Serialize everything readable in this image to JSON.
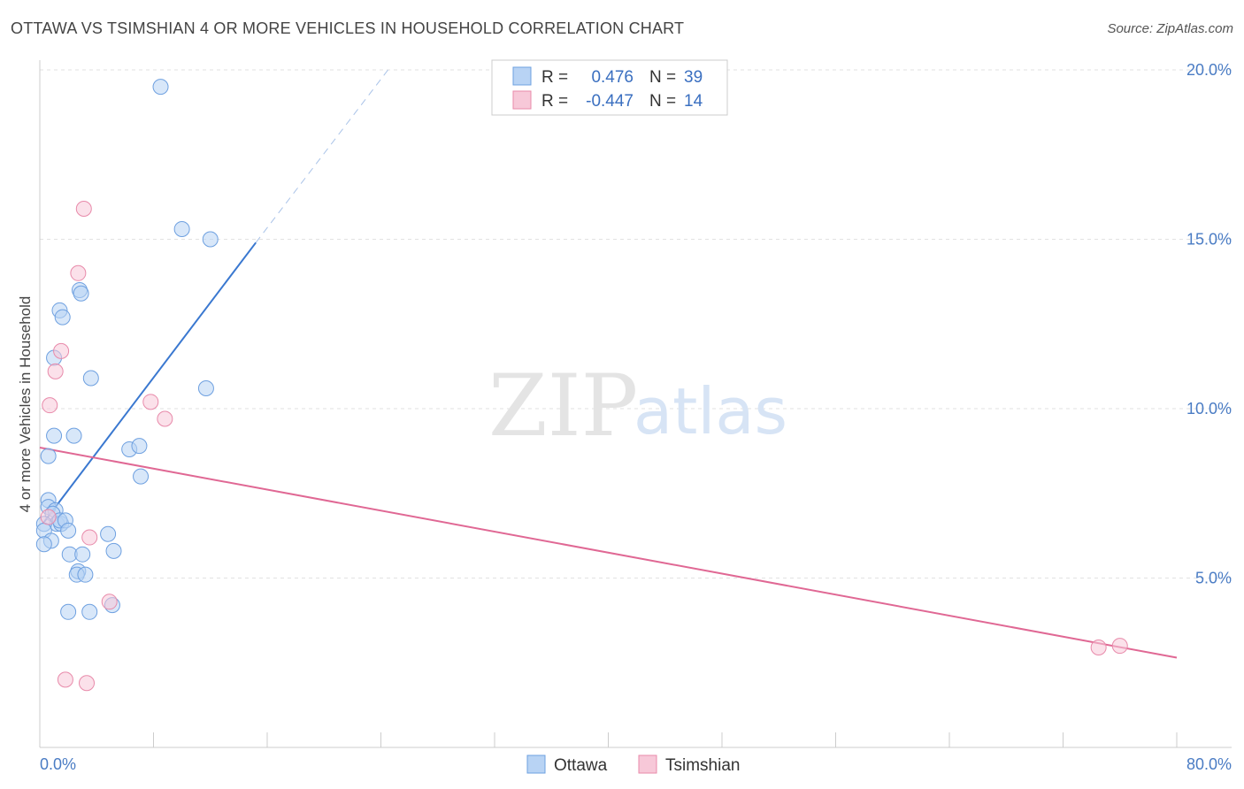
{
  "title": "OTTAWA VS TSIMSHIAN 4 OR MORE VEHICLES IN HOUSEHOLD CORRELATION CHART",
  "source": "Source: ZipAtlas.com",
  "watermark": {
    "zip": "ZIP",
    "atlas": "atlas"
  },
  "legend": {
    "rows": [
      {
        "r_label": "R =",
        "r_value": "0.476",
        "n_label": "N =",
        "n_value": "39"
      },
      {
        "r_label": "R =",
        "r_value": "-0.447",
        "n_label": "N =",
        "n_value": "14"
      }
    ]
  },
  "chart_data": {
    "type": "scatter",
    "title": "",
    "xlabel": "",
    "ylabel": "4 or more Vehicles in Household",
    "xlim": [
      0,
      80
    ],
    "ylim": [
      0,
      20.5
    ],
    "x_tick_labels": [
      {
        "value": 0,
        "label": "0.0%"
      },
      {
        "value": 80,
        "label": "80.0%"
      }
    ],
    "y_tick_labels": [
      {
        "value": 5,
        "label": "5.0%"
      },
      {
        "value": 10,
        "label": "10.0%"
      },
      {
        "value": 15,
        "label": "15.0%"
      },
      {
        "value": 20,
        "label": "20.0%"
      }
    ],
    "grid": true,
    "legend_position": "top-center",
    "series": [
      {
        "name": "Ottawa",
        "color": "#6ea0e0",
        "fill": "#b8d3f4",
        "trend_color": "#3a78d0",
        "trend": {
          "x0": 0.2,
          "y0": 6.6,
          "x1": 15.2,
          "y1": 14.9,
          "dash_to_x": 24.5,
          "dash_to_y": 20.0
        },
        "points": [
          [
            8.5,
            19.5
          ],
          [
            10,
            15.3
          ],
          [
            12,
            15.0
          ],
          [
            2.8,
            13.5
          ],
          [
            2.9,
            13.4
          ],
          [
            1.4,
            12.9
          ],
          [
            1.6,
            12.7
          ],
          [
            1.0,
            11.5
          ],
          [
            3.6,
            10.9
          ],
          [
            11.7,
            10.6
          ],
          [
            1.0,
            9.2
          ],
          [
            2.4,
            9.2
          ],
          [
            6.3,
            8.8
          ],
          [
            7.0,
            8.9
          ],
          [
            0.6,
            8.6
          ],
          [
            7.1,
            8.0
          ],
          [
            0.6,
            7.3
          ],
          [
            0.6,
            7.1
          ],
          [
            1.1,
            7.0
          ],
          [
            0.9,
            6.9
          ],
          [
            1.2,
            6.6
          ],
          [
            1.5,
            6.6
          ],
          [
            1.4,
            6.7
          ],
          [
            1.8,
            6.7
          ],
          [
            0.3,
            6.6
          ],
          [
            0.3,
            6.4
          ],
          [
            2.0,
            6.4
          ],
          [
            4.8,
            6.3
          ],
          [
            0.8,
            6.1
          ],
          [
            0.3,
            6.0
          ],
          [
            2.1,
            5.7
          ],
          [
            3.0,
            5.7
          ],
          [
            5.2,
            5.8
          ],
          [
            2.7,
            5.2
          ],
          [
            2.6,
            5.1
          ],
          [
            3.2,
            5.1
          ],
          [
            2.0,
            4.0
          ],
          [
            3.5,
            4.0
          ],
          [
            5.1,
            4.2
          ]
        ]
      },
      {
        "name": "Tsimshian",
        "color": "#e88aaa",
        "fill": "#f7c8d8",
        "trend_color": "#e06894",
        "trend": {
          "x0": 0.0,
          "y0": 8.85,
          "x1": 80.0,
          "y1": 2.65
        },
        "points": [
          [
            3.1,
            15.9
          ],
          [
            2.7,
            14.0
          ],
          [
            1.5,
            11.7
          ],
          [
            1.1,
            11.1
          ],
          [
            0.7,
            10.1
          ],
          [
            7.8,
            10.2
          ],
          [
            8.8,
            9.7
          ],
          [
            0.6,
            6.8
          ],
          [
            3.5,
            6.2
          ],
          [
            4.9,
            4.3
          ],
          [
            1.8,
            2.0
          ],
          [
            3.3,
            1.9
          ],
          [
            74.5,
            2.95
          ],
          [
            76.0,
            3.0
          ]
        ]
      }
    ]
  }
}
